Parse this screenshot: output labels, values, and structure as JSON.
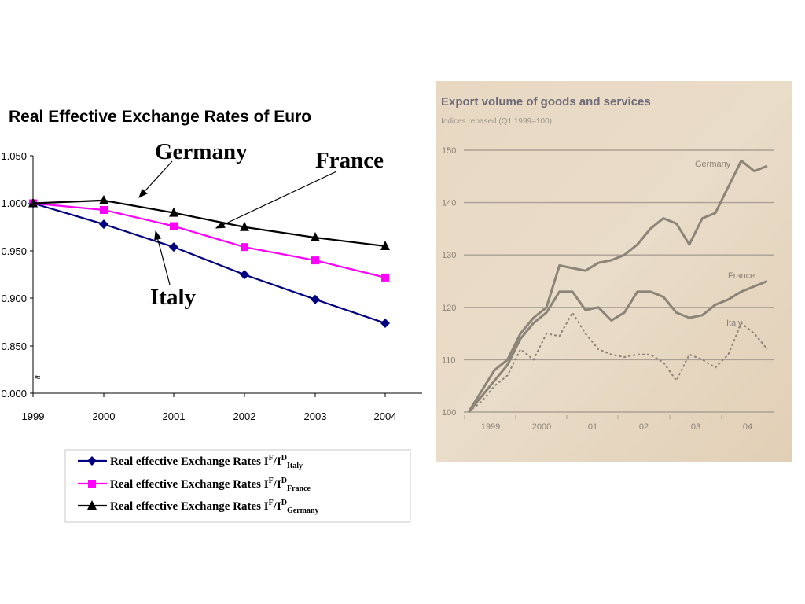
{
  "chart_data": [
    {
      "type": "line",
      "title": "Real Effective Exchange Rates of Euro",
      "x": [
        "1999",
        "2000",
        "2001",
        "2002",
        "2003",
        "2004"
      ],
      "yticks": [
        "1.050",
        "1.000",
        "0.950",
        "0.900",
        "0.850",
        "0.000"
      ],
      "y_axis_break": "≈",
      "series": [
        {
          "name": "Real effective Exchange Rates I",
          "sup": "F",
          "slash": "/I",
          "sup2": "D",
          "sub": "Italy",
          "color": "#000080",
          "marker": "diamond",
          "values": [
            1.0,
            0.978,
            0.954,
            0.925,
            0.899,
            0.874
          ]
        },
        {
          "name": "Real effective Exchange Rates I",
          "sup": "F",
          "slash": "/I",
          "sup2": "D",
          "sub": "France",
          "color": "#ff00ff",
          "marker": "square",
          "values": [
            1.0,
            0.993,
            0.976,
            0.954,
            0.94,
            0.922
          ]
        },
        {
          "name": "Real effective Exchange Rates I",
          "sup": "F",
          "slash": "/I",
          "sup2": "D",
          "sub": "Germany",
          "color": "#000000",
          "marker": "triangle",
          "values": [
            1.0,
            1.003,
            0.99,
            0.975,
            0.964,
            0.955
          ]
        }
      ],
      "annotations": [
        "Germany",
        "France",
        "Italy"
      ],
      "legend_position": "bottom"
    },
    {
      "type": "line",
      "title": "Export volume of goods and services",
      "subtitle": "Indices rebased (Q1 1999=100)",
      "x_labels": [
        "1999",
        "2000",
        "01",
        "02",
        "03",
        "04"
      ],
      "yticks": [
        "150",
        "140",
        "130",
        "120",
        "110",
        "100"
      ],
      "ylim": [
        100,
        150
      ],
      "series_labels": [
        "Germany",
        "France",
        "Italy"
      ],
      "series": [
        {
          "name": "Germany",
          "style": "solid",
          "values": [
            100,
            104,
            108,
            110,
            115,
            118,
            120,
            128,
            127.5,
            127,
            128.5,
            129,
            130,
            132,
            135,
            137,
            136,
            132,
            137,
            138,
            143,
            148,
            146,
            147
          ]
        },
        {
          "name": "France",
          "style": "solid",
          "values": [
            100,
            103,
            106,
            109,
            114,
            117,
            119,
            123,
            123,
            119.5,
            120,
            117.5,
            119,
            123,
            123,
            122,
            119,
            118,
            118.5,
            120.5,
            121.5,
            123,
            124,
            125
          ]
        },
        {
          "name": "Italy",
          "style": "dotted",
          "values": [
            100,
            102,
            105,
            107,
            112,
            110,
            115,
            114.5,
            119,
            115,
            112,
            111,
            110.5,
            111,
            111,
            109.5,
            106,
            111,
            110,
            108.5,
            111,
            117,
            115,
            112
          ]
        }
      ],
      "grid": true
    }
  ]
}
